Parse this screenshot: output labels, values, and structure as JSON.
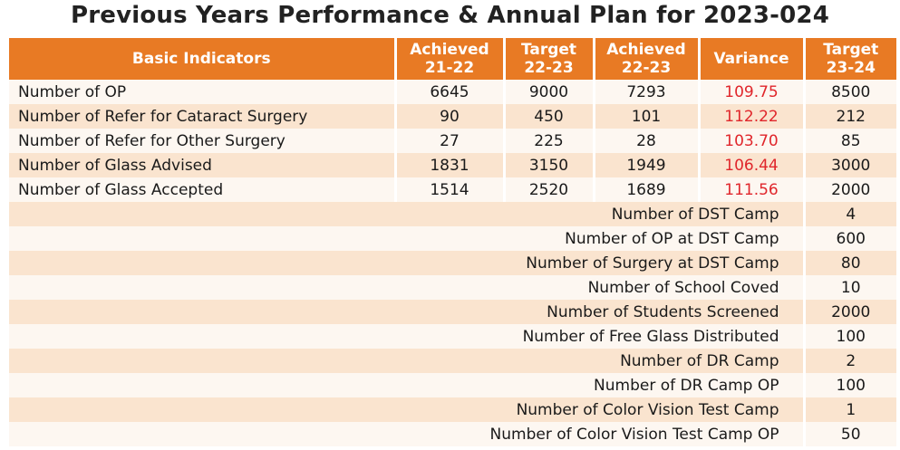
{
  "title": "Previous Years Performance & Annual Plan for 2023-024",
  "headers": {
    "basic_indicators": "Basic Indicators",
    "achieved_2122_line1": "Achieved",
    "achieved_2122_line2": "21-22",
    "target_2223_line1": "Target",
    "target_2223_line2": "22-23",
    "achieved_2223_line1": "Achieved",
    "achieved_2223_line2": "22-23",
    "variance": "Variance",
    "target_2324_line1": "Target",
    "target_2324_line2": "23-24"
  },
  "rows": [
    {
      "label": "Number of OP",
      "achieved_2122": "6645",
      "target_2223": "9000",
      "achieved_2223": "7293",
      "variance": "109.75",
      "target_2324": "8500"
    },
    {
      "label": "Number of Refer for Cataract Surgery",
      "achieved_2122": "90",
      "target_2223": "450",
      "achieved_2223": "101",
      "variance": "112.22",
      "target_2324": "212"
    },
    {
      "label": "Number of Refer for Other Surgery",
      "achieved_2122": "27",
      "target_2223": "225",
      "achieved_2223": "28",
      "variance": "103.70",
      "target_2324": "85"
    },
    {
      "label": "Number of Glass Advised",
      "achieved_2122": "1831",
      "target_2223": "3150",
      "achieved_2223": "1949",
      "variance": "106.44",
      "target_2324": "3000"
    },
    {
      "label": "Number of Glass Accepted",
      "achieved_2122": "1514",
      "target_2223": "2520",
      "achieved_2223": "1689",
      "variance": "111.56",
      "target_2324": "2000"
    }
  ],
  "plan_rows": [
    {
      "label": "Number of DST Camp",
      "target_2324": "4"
    },
    {
      "label": "Number of OP at DST Camp",
      "target_2324": "600"
    },
    {
      "label": "Number of Surgery at DST Camp",
      "target_2324": "80"
    },
    {
      "label": "Number of School Coved",
      "target_2324": "10"
    },
    {
      "label": "Number of Students Screened",
      "target_2324": "2000"
    },
    {
      "label": "Number of Free Glass Distributed",
      "target_2324": "100"
    },
    {
      "label": "Number of DR Camp",
      "target_2324": "2"
    },
    {
      "label": "Number of DR Camp OP",
      "target_2324": "100"
    },
    {
      "label": "Number of Color Vision Test Camp",
      "target_2324": "1"
    },
    {
      "label": "Number of Color Vision Test Camp OP",
      "target_2324": "50"
    }
  ],
  "colors": {
    "header_bg": "#e87a24",
    "row_light": "#fdf7f1",
    "row_tinted": "#fae4cf",
    "variance_text": "#e0262b"
  }
}
